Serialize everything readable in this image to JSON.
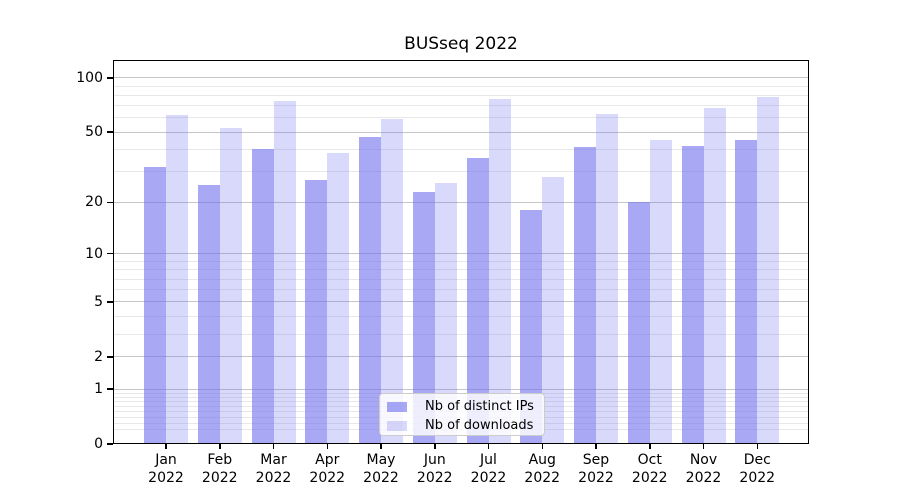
{
  "title": "BUSseq 2022",
  "chart_data": {
    "type": "bar",
    "title": "BUSseq 2022",
    "categories": [
      "Jan 2022",
      "Feb 2022",
      "Mar 2022",
      "Apr 2022",
      "May 2022",
      "Jun 2022",
      "Jul 2022",
      "Aug 2022",
      "Sep 2022",
      "Oct 2022",
      "Nov 2022",
      "Dec 2022"
    ],
    "series": [
      {
        "name": "Nb of distinct IPs",
        "color": "rgba(110,110,238,0.60)",
        "values": [
          32,
          25,
          40,
          27,
          47,
          23,
          36,
          18,
          41,
          20,
          42,
          45
        ]
      },
      {
        "name": "Nb of downloads",
        "color": "rgba(110,110,238,0.26)",
        "values": [
          62,
          53,
          74,
          38,
          59,
          26,
          76,
          28,
          63,
          45,
          68,
          78
        ]
      }
    ],
    "yscale": "log(1+x)",
    "y_major_ticks": [
      0,
      1,
      2,
      5,
      10,
      20,
      50,
      100
    ],
    "y_minor_ticks": [
      0.2,
      0.3,
      0.4,
      0.5,
      0.6,
      0.7,
      0.8,
      0.9,
      3,
      4,
      6,
      7,
      8,
      9,
      30,
      40,
      60,
      70,
      80,
      90
    ],
    "ylim": [
      0,
      125
    ],
    "grid": true,
    "legend_position": "lower center"
  },
  "colors": {
    "grid_major": "#c6c6c6",
    "grid_minor": "#e8e8e8",
    "axis": "#000000",
    "background": "#ffffff"
  }
}
